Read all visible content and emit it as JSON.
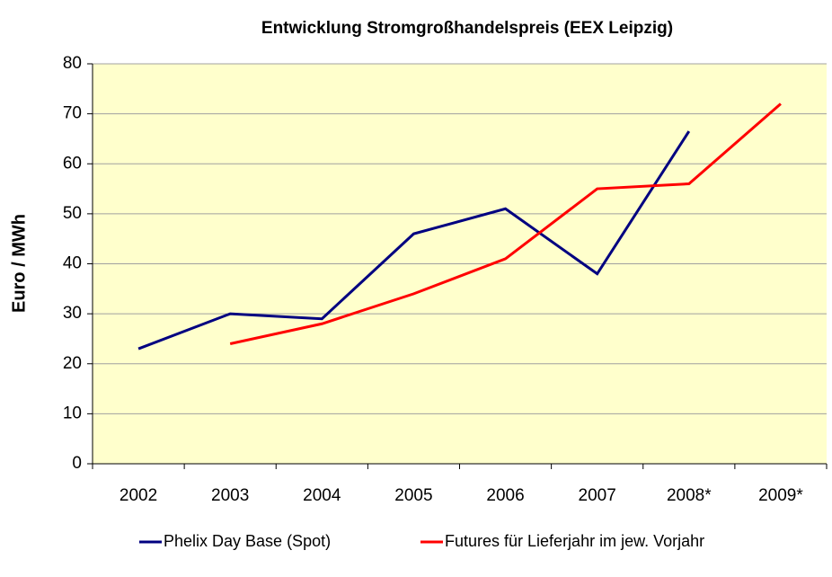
{
  "chart_data": {
    "type": "line",
    "title": "Entwicklung Stromgroßhandelspreis (EEX Leipzig)",
    "y_label": "Euro / MWh",
    "categories": [
      "2002",
      "2003",
      "2004",
      "2005",
      "2006",
      "2007",
      "2008*",
      "2009*"
    ],
    "series": [
      {
        "name": "Phelix Day Base (Spot)",
        "color": "#000080",
        "values": [
          23,
          30,
          29,
          46,
          51,
          38,
          66.5,
          null
        ]
      },
      {
        "name": "Futures für Lieferjahr im jew. Vorjahr",
        "color": "#ff0000",
        "values": [
          null,
          24,
          28,
          34,
          41,
          55,
          56,
          72
        ]
      }
    ],
    "ylim": [
      0,
      80
    ],
    "yticks": [
      0,
      10,
      20,
      30,
      40,
      50,
      60,
      70,
      80
    ],
    "grid": true,
    "plot_background": "#ffffcc",
    "legend": "bottom"
  }
}
